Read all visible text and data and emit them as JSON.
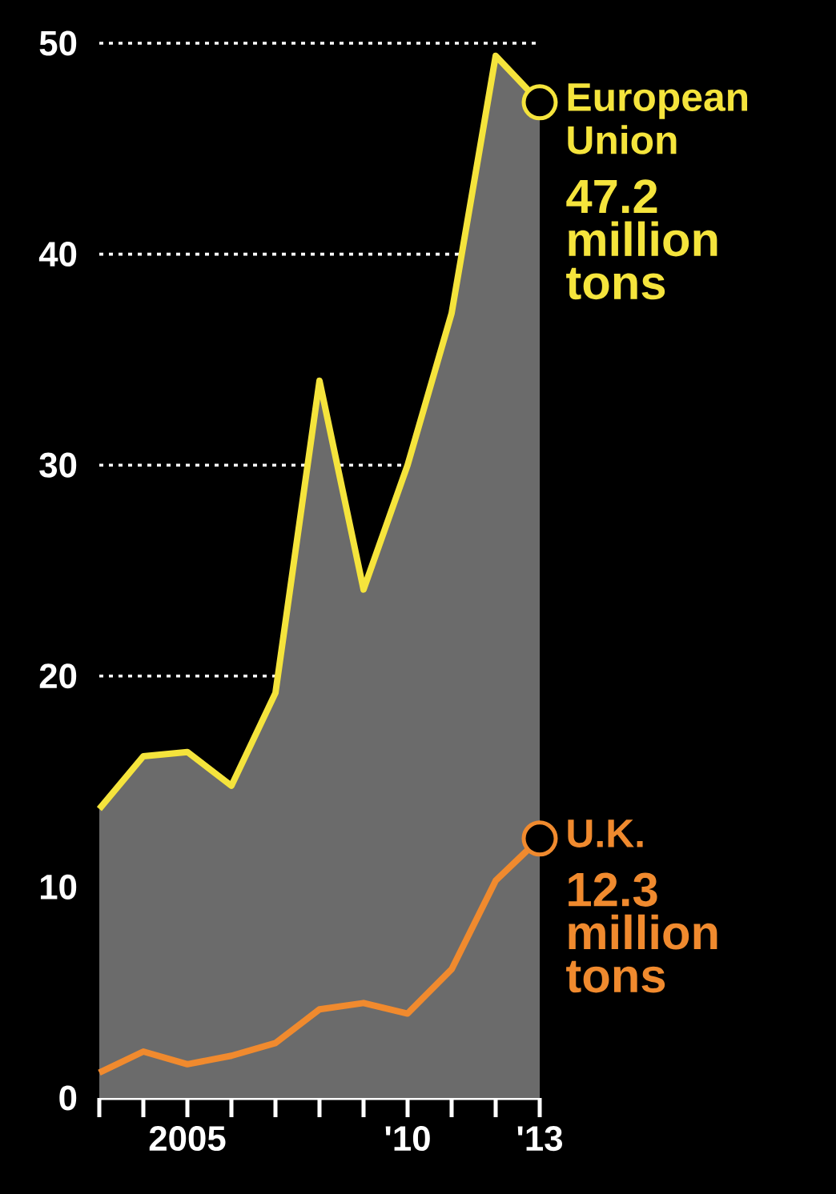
{
  "chart_data": {
    "type": "line",
    "x": [
      2003,
      2004,
      2005,
      2006,
      2007,
      2008,
      2009,
      2010,
      2011,
      2012,
      2013
    ],
    "xlim": [
      2003,
      2013
    ],
    "xticks": [
      {
        "value": 2003,
        "label": null
      },
      {
        "value": 2004,
        "label": null
      },
      {
        "value": 2005,
        "label": "2005"
      },
      {
        "value": 2006,
        "label": null
      },
      {
        "value": 2007,
        "label": null
      },
      {
        "value": 2008,
        "label": null
      },
      {
        "value": 2009,
        "label": null
      },
      {
        "value": 2010,
        "label": "'10"
      },
      {
        "value": 2011,
        "label": null
      },
      {
        "value": 2012,
        "label": null
      },
      {
        "value": 2013,
        "label": "'13"
      }
    ],
    "ylim": [
      0,
      50
    ],
    "yticks": [
      0,
      10,
      20,
      30,
      40,
      50
    ],
    "grid": "y",
    "series": [
      {
        "name": "European Union",
        "type": "area",
        "color": "#f5e43c",
        "values": [
          13.7,
          16.2,
          16.4,
          14.8,
          19.2,
          34.0,
          24.1,
          30.0,
          37.2,
          49.4,
          47.2
        ]
      },
      {
        "name": "U.K.",
        "type": "line",
        "color": "#f08a2e",
        "values": [
          1.2,
          2.2,
          1.6,
          2.0,
          2.6,
          4.2,
          4.5,
          4.0,
          6.1,
          10.3,
          12.3
        ]
      }
    ],
    "annotations": [
      {
        "text": "47.2 million tons",
        "x": 2013,
        "y": 47.2
      },
      {
        "text": "12.3 million tons",
        "x": 2013,
        "y": 12.3
      }
    ]
  }
}
